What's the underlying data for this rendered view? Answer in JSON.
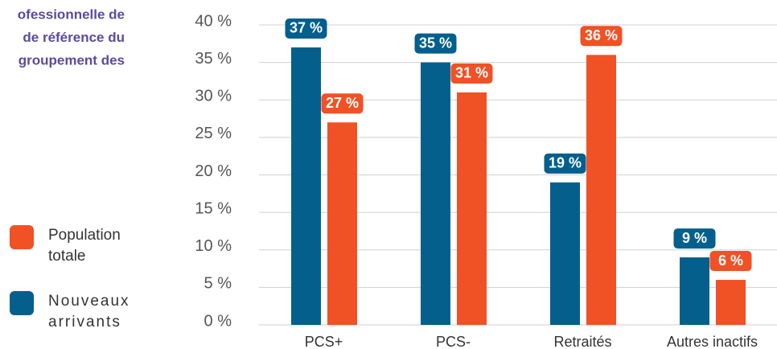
{
  "chart_data": {
    "type": "bar",
    "title_lines": [
      "ofessionnelle de",
      "de référence du",
      "groupement des"
    ],
    "categories": [
      "PCS+",
      "PCS-",
      "Retraités",
      "Autres inactifs"
    ],
    "series": [
      {
        "name": "Nouveaux arrivants",
        "color": "#045f8c",
        "values": [
          37,
          35,
          19,
          9
        ],
        "value_labels": [
          "37 %",
          "35 %",
          "19 %",
          "9 %"
        ]
      },
      {
        "name": "Population totale",
        "color": "#f05125",
        "values": [
          27,
          31,
          36,
          6
        ],
        "value_labels": [
          "27 %",
          "31 %",
          "36 %",
          "6 %"
        ]
      }
    ],
    "ylim": [
      0,
      40
    ],
    "yticks": [
      {
        "value": 0,
        "label": "0 %"
      },
      {
        "value": 5,
        "label": "5 %"
      },
      {
        "value": 10,
        "label": "10 %"
      },
      {
        "value": 15,
        "label": "15 %"
      },
      {
        "value": 20,
        "label": "20 %"
      },
      {
        "value": 25,
        "label": "25 %"
      },
      {
        "value": 30,
        "label": "30 %"
      },
      {
        "value": 35,
        "label": "35 %"
      },
      {
        "value": 40,
        "label": "40 %"
      }
    ],
    "grid": true
  }
}
